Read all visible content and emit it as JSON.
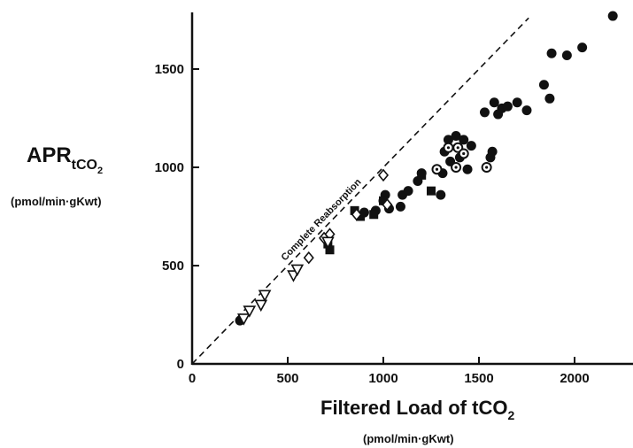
{
  "chart_data": {
    "type": "scatter",
    "title": "",
    "xlabel": "Filtered Load of tCO2",
    "xlabel_main": "Filtered Load of tCO",
    "xlabel_sub": "2",
    "xunits": "(pmol/min·gKwt)",
    "ylabel": "APRtCO2",
    "ylabel_main": "APR",
    "ylabel_sub_text": "tCO",
    "ylabel_sub_sub": "2",
    "yunits": "(pmol/min·gKwt)",
    "xlim": [
      0,
      2300
    ],
    "ylim": [
      0,
      1800
    ],
    "xticks": [
      0,
      500,
      1000,
      1500,
      2000
    ],
    "yticks": [
      0,
      500,
      1000,
      1500
    ],
    "grid": false,
    "identity_line": {
      "label": "Complete Reabsorption",
      "x": [
        0,
        1760
      ],
      "y": [
        0,
        1760
      ]
    },
    "series": [
      {
        "marker": "filled-circle",
        "points": [
          [
            900,
            770
          ],
          [
            960,
            780
          ],
          [
            1000,
            830
          ],
          [
            1010,
            860
          ],
          [
            1090,
            800
          ],
          [
            1100,
            860
          ],
          [
            1130,
            880
          ],
          [
            1180,
            930
          ],
          [
            1200,
            970
          ],
          [
            1300,
            860
          ],
          [
            1310,
            970
          ],
          [
            1320,
            1080
          ],
          [
            1340,
            1140
          ],
          [
            1350,
            1030
          ],
          [
            1380,
            1160
          ],
          [
            1400,
            1050
          ],
          [
            1420,
            1140
          ],
          [
            1440,
            990
          ],
          [
            1460,
            1110
          ],
          [
            1530,
            1280
          ],
          [
            1560,
            1050
          ],
          [
            1570,
            1080
          ],
          [
            1580,
            1330
          ],
          [
            1600,
            1270
          ],
          [
            1620,
            1300
          ],
          [
            1650,
            1310
          ],
          [
            1700,
            1330
          ],
          [
            1750,
            1290
          ],
          [
            1840,
            1420
          ],
          [
            1870,
            1350
          ],
          [
            1880,
            1580
          ],
          [
            1960,
            1570
          ],
          [
            2040,
            1610
          ],
          [
            2200,
            1770
          ],
          [
            1030,
            790
          ],
          [
            250,
            220
          ]
        ]
      },
      {
        "marker": "filled-square",
        "points": [
          [
            710,
            610
          ],
          [
            720,
            580
          ],
          [
            850,
            780
          ],
          [
            880,
            750
          ],
          [
            950,
            760
          ],
          [
            1000,
            830
          ],
          [
            1200,
            960
          ],
          [
            1250,
            880
          ]
        ]
      },
      {
        "marker": "dotted-circle",
        "points": [
          [
            1280,
            990
          ],
          [
            1340,
            1100
          ],
          [
            1380,
            1000
          ],
          [
            1390,
            1100
          ],
          [
            1420,
            1070
          ],
          [
            1540,
            1000
          ]
        ]
      },
      {
        "marker": "open-diamond",
        "points": [
          [
            1000,
            960
          ],
          [
            610,
            540
          ],
          [
            690,
            640
          ],
          [
            720,
            660
          ],
          [
            860,
            760
          ],
          [
            1020,
            810
          ]
        ]
      },
      {
        "marker": "open-triangle",
        "points": [
          [
            270,
            230
          ],
          [
            300,
            270
          ],
          [
            360,
            300
          ],
          [
            380,
            350
          ],
          [
            530,
            450
          ],
          [
            550,
            480
          ],
          [
            710,
            620
          ]
        ]
      }
    ]
  }
}
